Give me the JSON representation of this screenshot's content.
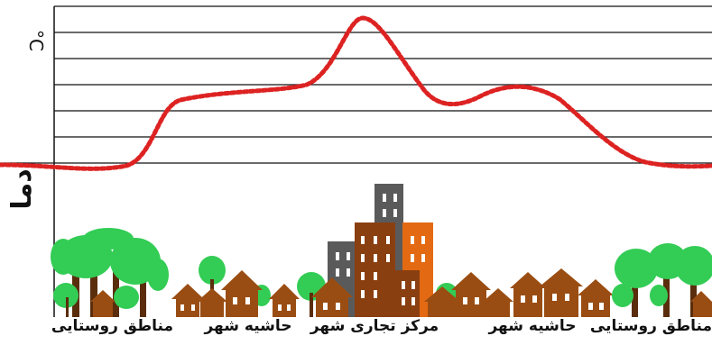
{
  "axis": {
    "y_label": "دما",
    "unit": "°C"
  },
  "zones": [
    {
      "id": "rural-left",
      "label": "مناطق روستایی"
    },
    {
      "id": "suburb-left",
      "label": "حاشیه شهر"
    },
    {
      "id": "downtown",
      "label": "مرکز تجاری شهر"
    },
    {
      "id": "suburb-right",
      "label": "حاشیه شهر"
    },
    {
      "id": "rural-right",
      "label": "مناطق روستایی"
    }
  ],
  "colors": {
    "temperature_curve": "#dd2222",
    "tree": "#33cc55",
    "trunk": "#5a2d0c",
    "house": "#9a4d12",
    "building_gray": "#5a5a5a",
    "building_brown": "#8a3f10",
    "building_orange": "#e36a12"
  }
}
